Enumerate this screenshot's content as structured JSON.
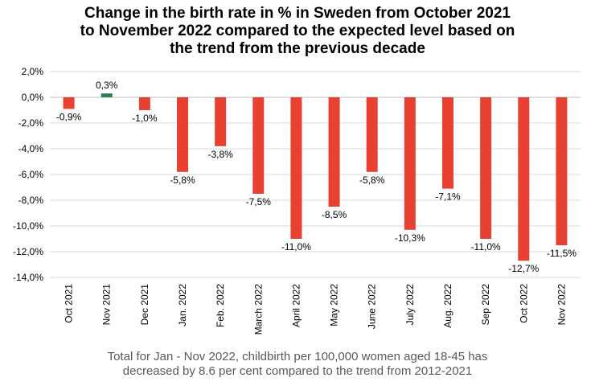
{
  "title_lines": [
    "Change in the birth rate in % in Sweden from October 2021",
    "to November 2022 compared to the expected level based on",
    "the trend from the previous decade"
  ],
  "note_lines": [
    "Total for Jan - Nov 2022, childbirth per 100,000 women aged 18-45 has",
    "decreased by 8.6 per cent compared to the trend from 2012-2021"
  ],
  "colors": {
    "positive": "#2e7d4f",
    "negative": "#e84132",
    "grid": "#d9d9d9"
  },
  "chart_data": {
    "type": "bar",
    "categories": [
      "Oct 2021",
      "Nov 2021",
      "Dec 2021",
      "Jan. 2022",
      "Feb. 2022",
      "March 2022",
      "April 2022",
      "May 2022",
      "June 2022",
      "July 2022",
      "Aug. 2022",
      "Sep 2022",
      "Oct 2022",
      "Nov 2022"
    ],
    "values": [
      -0.9,
      0.3,
      -1.0,
      -5.8,
      -3.8,
      -7.5,
      -11.0,
      -8.5,
      -5.8,
      -10.3,
      -7.1,
      -11.0,
      -12.7,
      -11.5
    ],
    "data_labels": [
      "-0,9%",
      "0,3%",
      "-1,0%",
      "-5,8%",
      "-3,8%",
      "-7,5%",
      "-11,0%",
      "-8,5%",
      "-5,8%",
      "-10,3%",
      "-7,1%",
      "-11,0%",
      "-12,7%",
      "-11,5%"
    ],
    "ylim": [
      -14,
      2
    ],
    "yticks": [
      2,
      0,
      -2,
      -4,
      -6,
      -8,
      -10,
      -12,
      -14
    ],
    "ytick_labels": [
      "2,0%",
      "0,0%",
      "-2,0%",
      "-4,0%",
      "-6,0%",
      "-8,0%",
      "-10,0%",
      "-12,0%",
      "-14,0%"
    ],
    "grid": true,
    "legend": "none"
  }
}
